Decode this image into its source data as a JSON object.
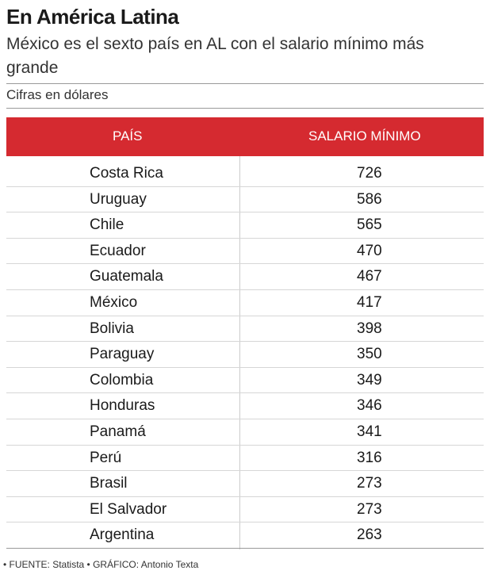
{
  "title": "En América Latina",
  "subtitle": "México es el sexto país en AL con el salario mínimo más grande",
  "units_note": "Cifras en dólares",
  "footer": "• FUENTE: Statista • GRÁFICO: Antonio Texta",
  "colors": {
    "header_background": "#d52a30",
    "header_text": "#ffffff"
  },
  "chart_data": {
    "type": "table",
    "title": "En América Latina",
    "subtitle": "México es el sexto país en AL con el salario mínimo más grande",
    "columns": [
      "PAÍS",
      "SALARIO MÍNIMO"
    ],
    "rows": [
      {
        "country": "Costa Rica",
        "value": 726
      },
      {
        "country": "Uruguay",
        "value": 586
      },
      {
        "country": "Chile",
        "value": 565
      },
      {
        "country": "Ecuador",
        "value": 470
      },
      {
        "country": "Guatemala",
        "value": 467
      },
      {
        "country": "México",
        "value": 417
      },
      {
        "country": "Bolivia",
        "value": 398
      },
      {
        "country": "Paraguay",
        "value": 350
      },
      {
        "country": "Colombia",
        "value": 349
      },
      {
        "country": "Honduras",
        "value": 346
      },
      {
        "country": "Panamá",
        "value": 341
      },
      {
        "country": "Perú",
        "value": 316
      },
      {
        "country": "Brasil",
        "value": 273
      },
      {
        "country": "El Salvador",
        "value": 273
      },
      {
        "country": "Argentina",
        "value": 263
      }
    ]
  }
}
